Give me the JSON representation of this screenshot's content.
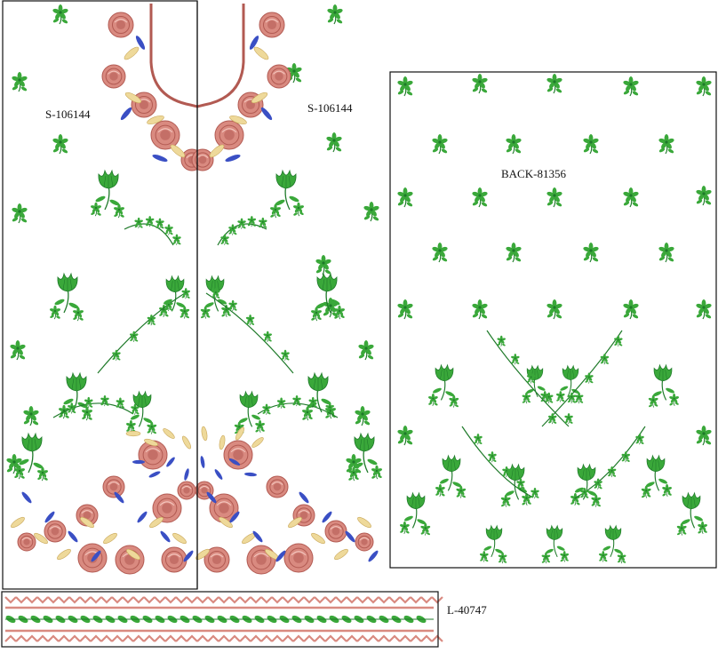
{
  "labels": {
    "front_left": "S-106144",
    "front_right": "S-106144",
    "back": "BACK-81356",
    "lace": "L-40747"
  },
  "palette": {
    "leaf_green": "#3aa83a",
    "leaf_dark": "#1f7a2a",
    "rose": "#d98a80",
    "rose_dark": "#b25a52",
    "blue": "#3a4fc4",
    "gold": "#eed99a",
    "outline": "#111111"
  }
}
